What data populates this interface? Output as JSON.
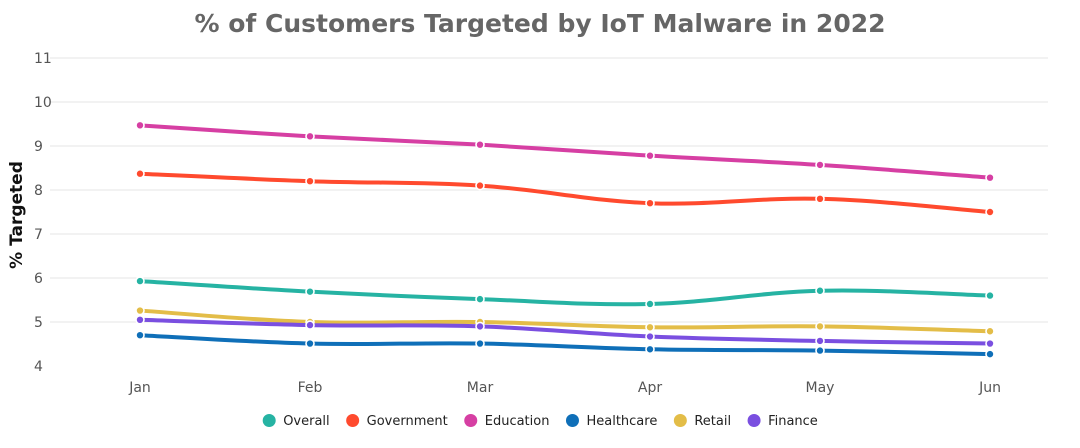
{
  "chart_data": {
    "type": "line",
    "title": "% of Customers Targeted by IoT Malware in 2022",
    "xlabel": "",
    "ylabel": "% Targeted",
    "categories": [
      "Jan",
      "Feb",
      "Mar",
      "Apr",
      "May",
      "Jun"
    ],
    "y_ticks": [
      "4",
      "5",
      "6",
      "7",
      "8",
      "9",
      "10",
      "11"
    ],
    "ylim": [
      4,
      11
    ],
    "grid": true,
    "legend_position": "bottom",
    "smooth": true,
    "series": [
      {
        "name": "Overall",
        "color": "#26b3a3",
        "values": [
          5.93,
          5.69,
          5.52,
          5.41,
          5.71,
          5.6
        ]
      },
      {
        "name": "Government",
        "color": "#ff4a2e",
        "values": [
          8.37,
          8.2,
          8.1,
          7.7,
          7.8,
          7.5
        ]
      },
      {
        "name": "Education",
        "color": "#d63fa3",
        "values": [
          9.47,
          9.22,
          9.03,
          8.78,
          8.57,
          8.28
        ]
      },
      {
        "name": "Healthcare",
        "color": "#0f6fb8",
        "values": [
          4.7,
          4.51,
          4.51,
          4.38,
          4.35,
          4.27
        ]
      },
      {
        "name": "Retail",
        "color": "#e3bd48",
        "values": [
          5.26,
          5.0,
          5.0,
          4.88,
          4.9,
          4.79
        ]
      },
      {
        "name": "Finance",
        "color": "#7a4fe0",
        "values": [
          5.05,
          4.93,
          4.9,
          4.67,
          4.57,
          4.51
        ]
      }
    ]
  }
}
